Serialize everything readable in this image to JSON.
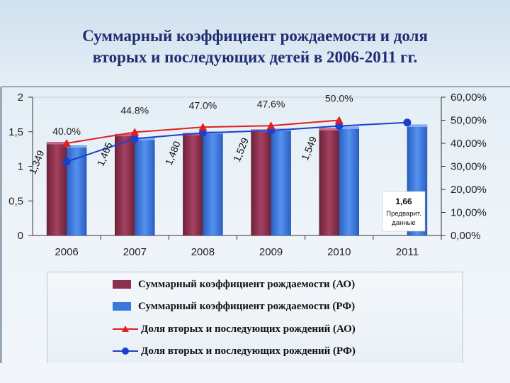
{
  "title": {
    "line1": "Суммарный коэффициент рождаемости и доля",
    "line2": "вторых и последующих детей в 2006-2011 гг."
  },
  "colors": {
    "ao_bar": "#8b2f4e",
    "rf_bar": "#3b78d8",
    "ao_line": "#e02020",
    "rf_line": "#1c3fd0"
  },
  "chart_data": {
    "type": "bar",
    "categories": [
      "2006",
      "2007",
      "2008",
      "2009",
      "2010",
      "2011"
    ],
    "series": [
      {
        "name": "Суммарный коэффициент рождаемости (АО)",
        "kind": "bar",
        "axis": "left",
        "values": [
          1.349,
          1.465,
          1.48,
          1.529,
          1.549,
          null
        ],
        "labels": [
          "1,349",
          "1,465",
          "1,480",
          "1,529",
          "1,549",
          ""
        ]
      },
      {
        "name": "Суммарный коэффициент рождаемости (РФ)",
        "kind": "bar",
        "axis": "left",
        "values": [
          1.3,
          1.41,
          1.5,
          1.54,
          1.57,
          1.6
        ]
      },
      {
        "name": "Доля вторых и последующих рождений (АО)",
        "kind": "line",
        "axis": "right",
        "values": [
          40.0,
          44.8,
          47.0,
          47.6,
          50.0,
          null
        ],
        "labels": [
          "40.0%",
          "44.8%",
          "47.0%",
          "47.6%",
          "50.0%",
          ""
        ]
      },
      {
        "name": "Доля вторых и последующих рождений (РФ)",
        "kind": "line",
        "axis": "right",
        "values": [
          32.0,
          42.0,
          44.5,
          45.5,
          47.5,
          49.0
        ]
      }
    ],
    "left_axis": {
      "min": 0,
      "max": 2,
      "ticks": [
        "0",
        "0,5",
        "1",
        "1,5",
        "2"
      ]
    },
    "right_axis": {
      "min": 0,
      "max": 60,
      "ticks": [
        "0,00%",
        "10,00%",
        "20,00%",
        "30,00%",
        "40,00%",
        "50,00%",
        "60,00%"
      ]
    },
    "annotation": {
      "value": "1,66",
      "line2": "Предварит.",
      "line3": "данные"
    },
    "legend_position": "bottom"
  }
}
